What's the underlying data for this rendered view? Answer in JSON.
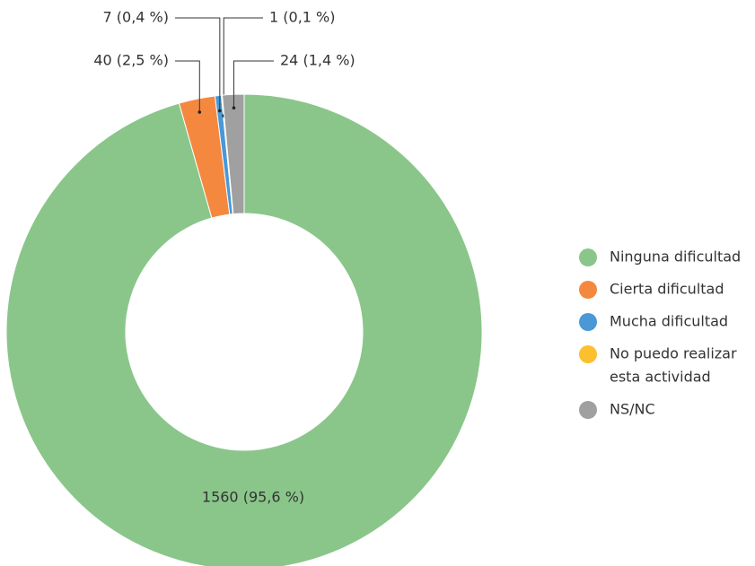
{
  "chart_data": {
    "type": "donut",
    "categories": [
      "Ninguna dificultad",
      "Cierta dificultad",
      "Mucha dificultad",
      [
        "No puedo realizar",
        "esta actividad"
      ],
      "NS/NC"
    ],
    "values": [
      1560,
      40,
      7,
      1,
      24
    ],
    "value_labels": [
      "1560 (95,6 %)",
      "40 (2,5 %)",
      "7 (0,4 %)",
      "1 (0,1 %)",
      "24 (1,4 %)"
    ],
    "colors": [
      "#8ac68a",
      "#f5883f",
      "#4a98d6",
      "#fcc02e",
      "#a0a0a0"
    ],
    "legend": "right"
  }
}
